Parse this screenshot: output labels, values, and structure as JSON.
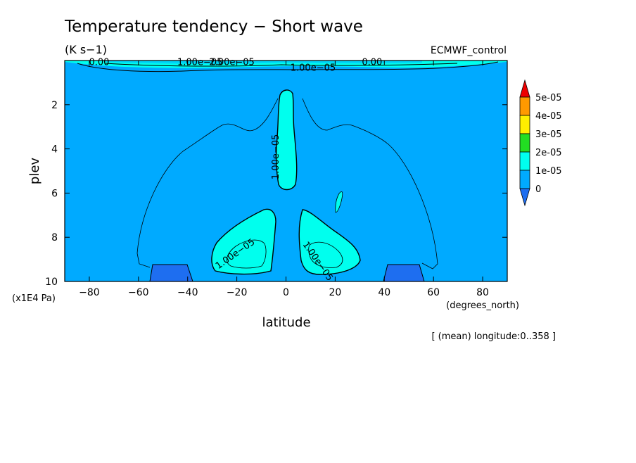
{
  "chart_data": {
    "type": "heatmap",
    "title": "Temperature tendency − Short wave",
    "units": "(K s−1)",
    "dataset": "ECMWF_control",
    "xlabel": "latitude",
    "xunits": "(degrees_north)",
    "ylabel": "plev",
    "yunits": "(x1E4 Pa)",
    "footnote": "[ (mean) longitude:0..358 ]",
    "xlim": [
      -90,
      90
    ],
    "ylim": [
      0,
      10
    ],
    "y_inverted": true,
    "xticks": [
      -80,
      -60,
      -40,
      -20,
      0,
      20,
      40,
      60,
      80
    ],
    "yticks": [
      2,
      4,
      6,
      8,
      10
    ],
    "colorbar": {
      "levels": [
        "0",
        "1e-05",
        "2e-05",
        "3e-05",
        "4e-05",
        "5e-05"
      ],
      "colors": [
        "#1e6ef0",
        "#00aaff",
        "#00ffee",
        "#22dd22",
        "#ffee00",
        "#ff9900",
        "#ee0000"
      ]
    },
    "contour_labels": [
      {
        "text": "0.00",
        "x": -76,
        "y": 0.05
      },
      {
        "text": "1.00e−05",
        "x": -35,
        "y": 0.05
      },
      {
        "text": "2.00e−05",
        "x": -22,
        "y": 0.05
      },
      {
        "text": "1.00e−05",
        "x": 11,
        "y": 0.3
      },
      {
        "text": "0.00",
        "x": 35,
        "y": 0.05
      },
      {
        "text": "1.00e−05",
        "x": -3,
        "y": 4.2
      },
      {
        "text": "1.00e−05",
        "x": -20,
        "y": 8.7
      },
      {
        "text": "1.00e−05",
        "x": 12,
        "y": 9.0
      }
    ]
  },
  "colors": {
    "field_low": "#00aaff",
    "field_mid": "#00ffee",
    "field_neg": "#1e6ef0"
  }
}
